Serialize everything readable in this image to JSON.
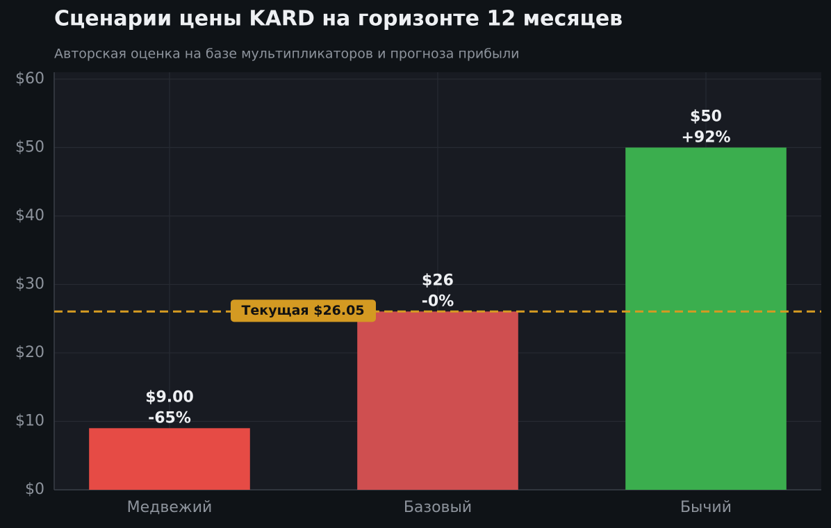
{
  "chart_data": {
    "type": "bar",
    "title": "Сценарии цены KARD на горизонте 12 месяцев",
    "subtitle": "Авторская оценка на базе мультипликаторов и прогноза прибыли",
    "categories": [
      "Медвежий",
      "Базовый",
      "Бычий"
    ],
    "values": [
      9,
      26.05,
      50
    ],
    "value_labels": [
      "$9.00",
      "$26",
      "$50"
    ],
    "change_labels": [
      "-65%",
      "-0%",
      "+92%"
    ],
    "colors": [
      "#e64b45",
      "#cf4f50",
      "#3bae4e"
    ],
    "ylim": [
      0,
      61
    ],
    "yticks": [
      {
        "value": 0,
        "label": "$0"
      },
      {
        "value": 10,
        "label": "$10"
      },
      {
        "value": 20,
        "label": "$20"
      },
      {
        "value": 30,
        "label": "$30"
      },
      {
        "value": 40,
        "label": "$40"
      },
      {
        "value": 50,
        "label": "$50"
      },
      {
        "value": 60,
        "label": "$60"
      }
    ],
    "grid": true,
    "reference_line": {
      "value": 26.05,
      "label": "Текущая $26.05",
      "color": "#d49a22"
    }
  }
}
